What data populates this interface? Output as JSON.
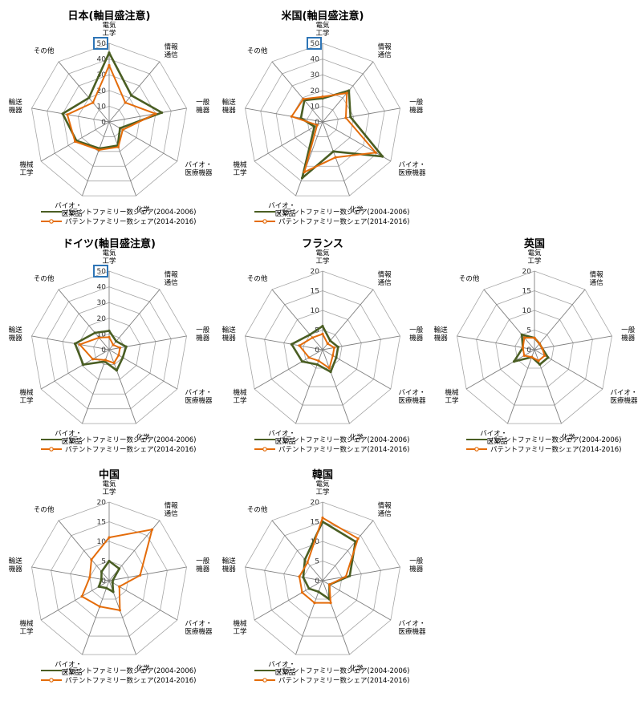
{
  "axis_labels": [
    [
      "電気",
      "工学"
    ],
    [
      "情報",
      "通信"
    ],
    [
      "一般",
      "機器"
    ],
    [
      "バイオ・",
      "医療機器"
    ],
    [
      "化学"
    ],
    [
      "バイオ・",
      "医薬品"
    ],
    [
      "機械",
      "工学"
    ],
    [
      "輸送",
      "機器"
    ],
    [
      "その他"
    ]
  ],
  "legend": [
    "パテントファミリー数シェア(2004-2006)",
    "パテントファミリー数シェア(2014-2016)"
  ],
  "colors": {
    "series1": "#4a5e23",
    "series2": "#e46c0a",
    "grid": "#a6a6a6",
    "axis": "#7f7f7f",
    "highlight": "#2e75b6"
  },
  "chart_data": [
    {
      "type": "radar",
      "title": "日本(軸目盛注意)",
      "max": 50,
      "ticks": [
        0,
        10,
        20,
        30,
        40,
        50
      ],
      "highlight_max": true,
      "categories": [
        "電気工学",
        "情報通信",
        "一般機器",
        "バイオ・医療機器",
        "化学",
        "バイオ・医薬品",
        "機械工学",
        "輸送機器",
        "その他"
      ],
      "series": [
        {
          "name": "パテントファミリー数シェア(2004-2006)",
          "values": [
            44,
            22,
            34,
            8,
            16,
            18,
            24,
            30,
            20
          ]
        },
        {
          "name": "パテントファミリー数シェア(2014-2016)",
          "values": [
            36,
            16,
            30,
            10,
            17,
            19,
            25,
            27,
            16
          ]
        }
      ]
    },
    {
      "type": "radar",
      "title": "米国(軸目盛注意)",
      "max": 50,
      "ticks": [
        0,
        10,
        20,
        30,
        40,
        50
      ],
      "highlight_max": true,
      "categories": [
        "電気工学",
        "情報通信",
        "一般機器",
        "バイオ・医療機器",
        "化学",
        "バイオ・医薬品",
        "機械工学",
        "輸送機器",
        "その他"
      ],
      "series": [
        {
          "name": "パテントファミリー数シェア(2004-2006)",
          "values": [
            15,
            26,
            18,
            44,
            20,
            38,
            6,
            14,
            18
          ]
        },
        {
          "name": "パテントファミリー数シェア(2014-2016)",
          "values": [
            16,
            24,
            15,
            39,
            24,
            34,
            4,
            20,
            19
          ]
        }
      ]
    },
    {
      "type": "radar",
      "title": "ドイツ(軸目盛注意)",
      "max": 50,
      "ticks": [
        0,
        10,
        20,
        30,
        40,
        50
      ],
      "highlight_max": true,
      "categories": [
        "電気工学",
        "情報通信",
        "一般機器",
        "バイオ・医療機器",
        "化学",
        "バイオ・医薬品",
        "機械工学",
        "輸送機器",
        "その他"
      ],
      "series": [
        {
          "name": "パテントファミリー数シェア(2004-2006)",
          "values": [
            12,
            7,
            11,
            10,
            14,
            8,
            19,
            22,
            14
          ]
        },
        {
          "name": "パテントファミリー数シェア(2014-2016)",
          "values": [
            8,
            4,
            7,
            7,
            9,
            7,
            12,
            19,
            10
          ]
        }
      ]
    },
    {
      "type": "radar",
      "title": "フランス",
      "max": 20,
      "ticks": [
        0,
        5,
        10,
        15,
        20
      ],
      "highlight_max": false,
      "categories": [
        "電気工学",
        "情報通信",
        "一般機器",
        "バイオ・医療機器",
        "化学",
        "バイオ・医薬品",
        "機械工学",
        "輸送機器",
        "その他"
      ],
      "series": [
        {
          "name": "パテントファミリー数シェア(2004-2006)",
          "values": [
            6,
            3,
            4,
            4,
            6,
            4,
            6,
            8,
            5
          ]
        },
        {
          "name": "パテントファミリー数シェア(2014-2016)",
          "values": [
            4,
            2,
            3,
            3,
            5,
            3,
            4,
            6,
            4
          ]
        }
      ]
    },
    {
      "type": "radar",
      "title": "英国",
      "max": 20,
      "ticks": [
        0,
        5,
        10,
        15,
        20
      ],
      "highlight_max": false,
      "categories": [
        "電気工学",
        "情報通信",
        "一般機器",
        "バイオ・医療機器",
        "化学",
        "バイオ・医薬品",
        "機械工学",
        "輸送機器",
        "その他"
      ],
      "series": [
        {
          "name": "パテントファミリー数シェア(2004-2006)",
          "values": [
            3,
            2,
            2,
            4,
            4,
            2,
            6,
            3,
            5
          ]
        },
        {
          "name": "パテントファミリー数シェア(2014-2016)",
          "values": [
            3,
            2,
            2,
            3,
            3,
            2,
            3,
            3,
            4
          ]
        }
      ]
    },
    {
      "type": "radar",
      "title": "中国",
      "max": 20,
      "ticks": [
        0,
        5,
        10,
        15,
        20
      ],
      "highlight_max": false,
      "categories": [
        "電気工学",
        "情報通信",
        "一般機器",
        "バイオ・医療機器",
        "化学",
        "バイオ・医薬品",
        "機械工学",
        "輸送機器",
        "その他"
      ],
      "series": [
        {
          "name": "パテントファミリー数シェア(2004-2006)",
          "values": [
            5,
            4,
            1,
            1,
            3,
            2,
            3,
            2,
            3
          ]
        },
        {
          "name": "パテントファミリー数シェア(2014-2016)",
          "values": [
            11,
            17,
            8,
            3,
            8,
            7,
            8,
            5,
            7
          ]
        }
      ]
    },
    {
      "type": "radar",
      "title": "韓国",
      "max": 20,
      "ticks": [
        0,
        5,
        10,
        15,
        20
      ],
      "highlight_max": false,
      "categories": [
        "電気工学",
        "情報通信",
        "一般機器",
        "バイオ・医療機器",
        "化学",
        "バイオ・医薬品",
        "機械工学",
        "輸送機器",
        "その他"
      ],
      "series": [
        {
          "name": "パテントファミリー数シェア(2004-2006)",
          "values": [
            15,
            13,
            7,
            2,
            5,
            3,
            4,
            5,
            7
          ]
        },
        {
          "name": "パテントファミリー数シェア(2014-2016)",
          "values": [
            16,
            14,
            6,
            2,
            6,
            6,
            6,
            6,
            6
          ]
        }
      ]
    }
  ]
}
